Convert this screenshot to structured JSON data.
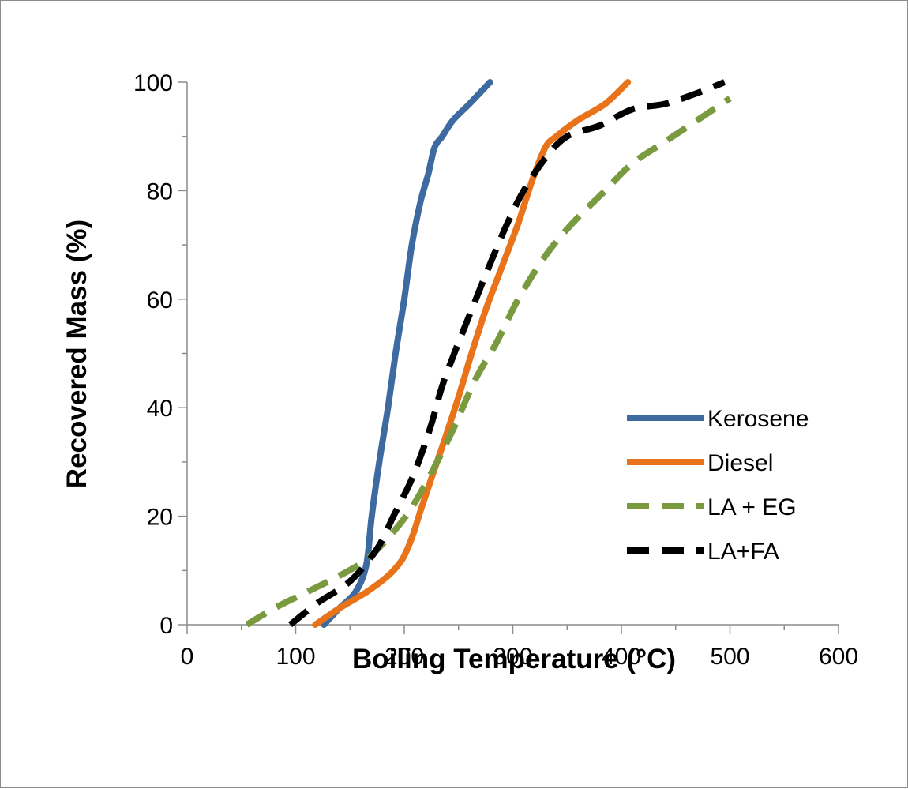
{
  "chart_data": {
    "type": "line",
    "xlabel": "Boiling Temperature (°C)",
    "ylabel": "Recovered Mass (%)",
    "xlim": [
      0,
      600
    ],
    "ylim": [
      0,
      100
    ],
    "x_ticks": [
      0,
      100,
      200,
      300,
      400,
      500,
      600
    ],
    "y_ticks": [
      0,
      20,
      40,
      60,
      80,
      100
    ],
    "grid": false,
    "legend_position": "right",
    "series": [
      {
        "name": "Kerosene",
        "color": "#3d6aa0",
        "dash": "solid",
        "points": [
          [
            126,
            0
          ],
          [
            140,
            3
          ],
          [
            155,
            6
          ],
          [
            165,
            11
          ],
          [
            170,
            20
          ],
          [
            177,
            30
          ],
          [
            185,
            40
          ],
          [
            192,
            50
          ],
          [
            200,
            60
          ],
          [
            207,
            70
          ],
          [
            215,
            78
          ],
          [
            222,
            83
          ],
          [
            228,
            88
          ],
          [
            235,
            90
          ],
          [
            245,
            93
          ],
          [
            260,
            96
          ],
          [
            279,
            100
          ]
        ]
      },
      {
        "name": "Diesel",
        "color": "#e8731a",
        "dash": "solid",
        "points": [
          [
            118,
            0
          ],
          [
            140,
            3
          ],
          [
            165,
            6
          ],
          [
            185,
            9
          ],
          [
            198,
            12
          ],
          [
            207,
            16
          ],
          [
            215,
            21
          ],
          [
            225,
            27
          ],
          [
            237,
            34
          ],
          [
            250,
            42
          ],
          [
            262,
            50
          ],
          [
            275,
            58
          ],
          [
            290,
            66
          ],
          [
            305,
            74
          ],
          [
            318,
            82
          ],
          [
            330,
            88
          ],
          [
            340,
            90
          ],
          [
            360,
            93
          ],
          [
            385,
            96
          ],
          [
            406,
            100
          ]
        ]
      },
      {
        "name": "LA + EG",
        "color": "#7a9a40",
        "dash": "dashed",
        "points": [
          [
            55,
            0
          ],
          [
            80,
            3
          ],
          [
            110,
            6
          ],
          [
            140,
            9
          ],
          [
            165,
            12
          ],
          [
            185,
            16
          ],
          [
            205,
            21
          ],
          [
            225,
            28
          ],
          [
            245,
            36
          ],
          [
            265,
            45
          ],
          [
            285,
            52
          ],
          [
            305,
            60
          ],
          [
            330,
            68
          ],
          [
            355,
            74
          ],
          [
            385,
            80
          ],
          [
            410,
            85
          ],
          [
            440,
            89
          ],
          [
            470,
            93
          ],
          [
            500,
            97
          ]
        ]
      },
      {
        "name": "LA+FA",
        "color": "#000000",
        "dash": "dashed",
        "points": [
          [
            95,
            0
          ],
          [
            120,
            4
          ],
          [
            150,
            8
          ],
          [
            175,
            14
          ],
          [
            190,
            20
          ],
          [
            205,
            26
          ],
          [
            215,
            31
          ],
          [
            225,
            37
          ],
          [
            235,
            44
          ],
          [
            248,
            51
          ],
          [
            262,
            58
          ],
          [
            278,
            66
          ],
          [
            295,
            74
          ],
          [
            310,
            80
          ],
          [
            330,
            86
          ],
          [
            350,
            90
          ],
          [
            380,
            92
          ],
          [
            410,
            95
          ],
          [
            440,
            96
          ],
          [
            470,
            98
          ],
          [
            495,
            100
          ]
        ]
      }
    ]
  }
}
